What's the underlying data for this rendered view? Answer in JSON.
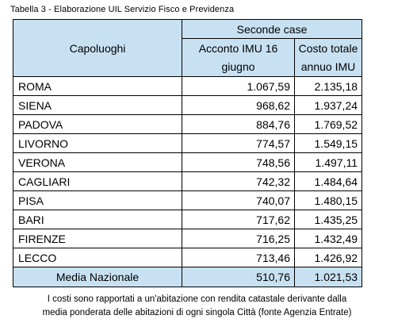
{
  "caption": "Tabella 3 - Elaborazione UIL Servizio Fisco e Previdenza",
  "header": {
    "capoluoghi": "Capoluoghi",
    "group": "Seconde case",
    "col1_line1": "Acconto IMU 16",
    "col1_line2": "giugno",
    "col2_line1": "Costo totale",
    "col2_line2": "annuo IMU"
  },
  "rows": [
    {
      "city": "ROMA",
      "acconto": "1.067,59",
      "totale": "2.135,18"
    },
    {
      "city": "SIENA",
      "acconto": "968,62",
      "totale": "1.937,24"
    },
    {
      "city": "PADOVA",
      "acconto": "884,76",
      "totale": "1.769,52"
    },
    {
      "city": "LIVORNO",
      "acconto": "774,57",
      "totale": "1.549,15"
    },
    {
      "city": "VERONA",
      "acconto": "748,56",
      "totale": "1.497,11"
    },
    {
      "city": "CAGLIARI",
      "acconto": "742,32",
      "totale": "1.484,64"
    },
    {
      "city": "PISA",
      "acconto": "740,07",
      "totale": "1.480,15"
    },
    {
      "city": "BARI",
      "acconto": "717,62",
      "totale": "1.435,25"
    },
    {
      "city": "FIRENZE",
      "acconto": "716,25",
      "totale": "1.432,49"
    },
    {
      "city": "LECCO",
      "acconto": "713,46",
      "totale": "1.426,92"
    }
  ],
  "average": {
    "label": "Media Nazionale",
    "acconto": "510,76",
    "totale": "1.021,53"
  },
  "note": {
    "line1": "I costi sono rapportati a un'abitazione con rendita catastale derivante dalla",
    "line2": "media ponderata delle abitazioni di ogni singola Città (fonte Agenzia Entrate)"
  }
}
